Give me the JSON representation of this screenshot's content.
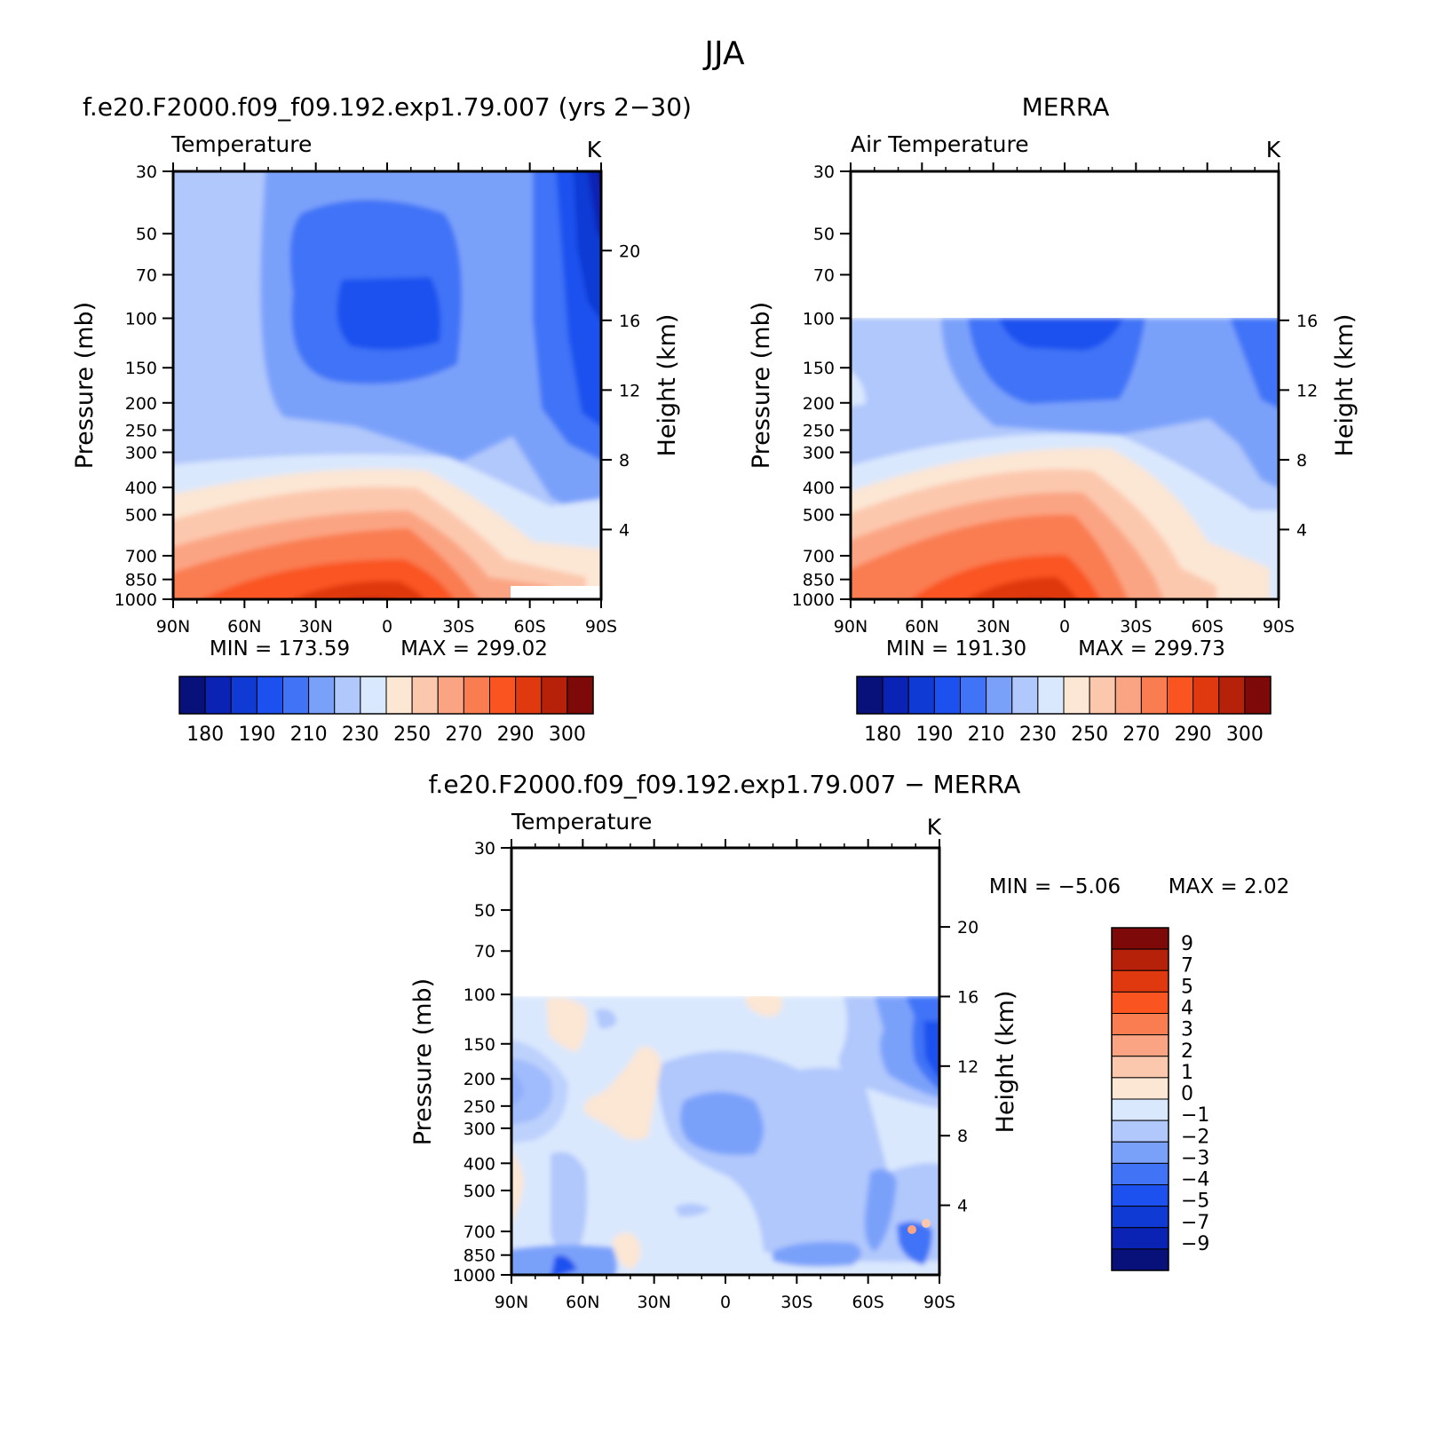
{
  "figure": {
    "title": "JJA"
  },
  "colors": {
    "abs_palette": [
      "#08107a",
      "#0a23b4",
      "#0f3ad4",
      "#1d51ef",
      "#4173f7",
      "#7aa1fa",
      "#b1c8fc",
      "#dae8fd",
      "#fce6d4",
      "#fcc8ad",
      "#fba483",
      "#fa7d51",
      "#fa5420",
      "#e0380f",
      "#b52109",
      "#7d0908"
    ],
    "diff_palette": [
      "#08107a",
      "#0a23b4",
      "#0f3ad4",
      "#1d51ef",
      "#4173f7",
      "#7aa1fa",
      "#b1c8fc",
      "#dae8fd",
      "#fce6d4",
      "#fcc8ad",
      "#fba483",
      "#fa7d51",
      "#fa5420",
      "#e0380f",
      "#b52109",
      "#7d0908"
    ]
  },
  "chart_data": [
    {
      "id": "model",
      "type": "heatmap",
      "title": "f.e20.F2000.f09_f09.192.exp1.79.007 (yrs 2−30)",
      "subtitle": "Temperature",
      "units": "K",
      "xlabel": "",
      "ylabel": "Pressure (mb)",
      "y2label": "Height (km)",
      "x_ticks": [
        "90N",
        "60N",
        "30N",
        "0",
        "30S",
        "60S",
        "90S"
      ],
      "y_ticks": [
        30,
        50,
        70,
        100,
        150,
        200,
        250,
        300,
        400,
        500,
        700,
        850,
        1000
      ],
      "y2_ticks": [
        20,
        16,
        12,
        8,
        4
      ],
      "ylim": [
        1000,
        30
      ],
      "data_top": 30,
      "min_label": "MIN =  173.59",
      "max_label": "MAX =  299.02",
      "min": 173.59,
      "max": 299.02,
      "colorbar": {
        "orientation": "horizontal",
        "levels": [
          180,
          185,
          190,
          200,
          210,
          220,
          230,
          240,
          250,
          260,
          270,
          280,
          290,
          295,
          300
        ],
        "labels": [
          "180",
          "190",
          "210",
          "230",
          "250",
          "270",
          "290",
          "300"
        ]
      }
    },
    {
      "id": "obs",
      "type": "heatmap",
      "title": "MERRA",
      "subtitle": "Air Temperature",
      "units": "K",
      "xlabel": "",
      "ylabel": "Pressure (mb)",
      "y2label": "Height (km)",
      "x_ticks": [
        "90N",
        "60N",
        "30N",
        "0",
        "30S",
        "60S",
        "90S"
      ],
      "y_ticks": [
        30,
        50,
        70,
        100,
        150,
        200,
        250,
        300,
        400,
        500,
        700,
        850,
        1000
      ],
      "y2_ticks": [
        16,
        12,
        8,
        4
      ],
      "ylim": [
        1000,
        30
      ],
      "data_top": 100,
      "min_label": "MIN =  191.30",
      "max_label": "MAX =  299.73",
      "min": 191.3,
      "max": 299.73,
      "colorbar": {
        "orientation": "horizontal",
        "levels": [
          180,
          185,
          190,
          200,
          210,
          220,
          230,
          240,
          250,
          260,
          270,
          280,
          290,
          295,
          300
        ],
        "labels": [
          "180",
          "190",
          "210",
          "230",
          "250",
          "270",
          "290",
          "300"
        ]
      }
    },
    {
      "id": "diff",
      "type": "heatmap",
      "title": "f.e20.F2000.f09_f09.192.exp1.79.007 − MERRA",
      "subtitle": "Temperature",
      "units": "K",
      "xlabel": "",
      "ylabel": "Pressure (mb)",
      "y2label": "Height (km)",
      "x_ticks": [
        "90N",
        "60N",
        "30N",
        "0",
        "30S",
        "60S",
        "90S"
      ],
      "y_ticks": [
        30,
        50,
        70,
        100,
        150,
        200,
        250,
        300,
        400,
        500,
        700,
        850,
        1000
      ],
      "y2_ticks": [
        20,
        16,
        12,
        8,
        4
      ],
      "ylim": [
        1000,
        30
      ],
      "data_top": 100,
      "min_label": "MIN =   −5.06",
      "max_label": "MAX =    2.02",
      "min": -5.06,
      "max": 2.02,
      "colorbar": {
        "orientation": "vertical",
        "levels": [
          -9,
          -7,
          -5,
          -4,
          -3,
          -2,
          -1,
          0,
          1,
          2,
          3,
          4,
          5,
          7,
          9
        ],
        "labels": [
          "9",
          "7",
          "5",
          "4",
          "3",
          "2",
          "1",
          "0",
          "−1",
          "−2",
          "−3",
          "−4",
          "−5",
          "−7",
          "−9"
        ]
      }
    }
  ]
}
